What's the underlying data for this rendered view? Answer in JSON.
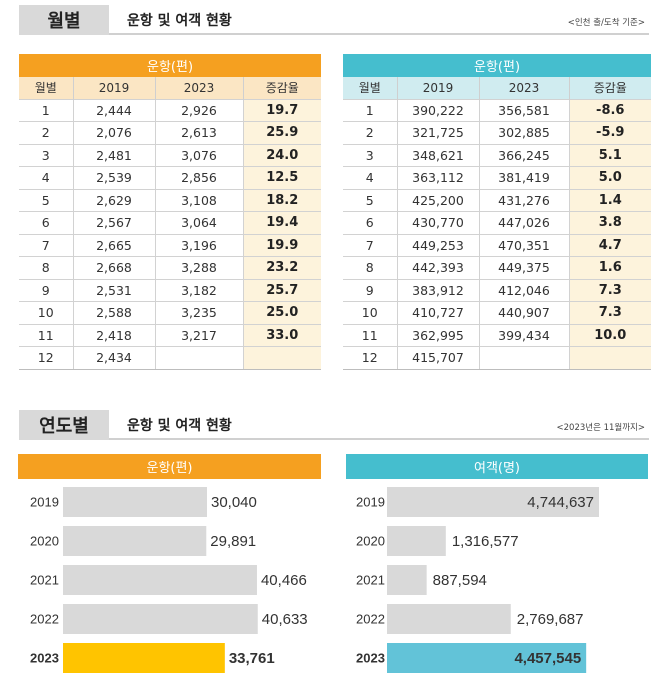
{
  "section_monthly": {
    "tab": "월별",
    "title": "운항 및 여객 현황",
    "note": "<인천 출/도착 기준>"
  },
  "flights_table": {
    "title": "운항(편)",
    "headers": [
      "월별",
      "2019",
      "2023",
      "증감율"
    ],
    "rows": [
      [
        "1",
        "2,444",
        "2,926",
        "19.7"
      ],
      [
        "2",
        "2,076",
        "2,613",
        "25.9"
      ],
      [
        "3",
        "2,481",
        "3,076",
        "24.0"
      ],
      [
        "4",
        "2,539",
        "2,856",
        "12.5"
      ],
      [
        "5",
        "2,629",
        "3,108",
        "18.2"
      ],
      [
        "6",
        "2,567",
        "3,064",
        "19.4"
      ],
      [
        "7",
        "2,665",
        "3,196",
        "19.9"
      ],
      [
        "8",
        "2,668",
        "3,288",
        "23.2"
      ],
      [
        "9",
        "2,531",
        "3,182",
        "25.7"
      ],
      [
        "10",
        "2,588",
        "3,235",
        "25.0"
      ],
      [
        "11",
        "2,418",
        "3,217",
        "33.0"
      ],
      [
        "12",
        "2,434",
        "",
        ""
      ]
    ]
  },
  "passengers_table": {
    "title": "운항(편)",
    "headers": [
      "월별",
      "2019",
      "2023",
      "증감율"
    ],
    "rows": [
      [
        "1",
        "390,222",
        "356,581",
        "-8.6"
      ],
      [
        "2",
        "321,725",
        "302,885",
        "-5.9"
      ],
      [
        "3",
        "348,621",
        "366,245",
        "5.1"
      ],
      [
        "4",
        "363,112",
        "381,419",
        "5.0"
      ],
      [
        "5",
        "425,200",
        "431,276",
        "1.4"
      ],
      [
        "6",
        "430,770",
        "447,026",
        "3.8"
      ],
      [
        "7",
        "449,253",
        "470,351",
        "4.7"
      ],
      [
        "8",
        "442,393",
        "449,375",
        "1.6"
      ],
      [
        "9",
        "383,912",
        "412,046",
        "7.3"
      ],
      [
        "10",
        "410,727",
        "440,907",
        "7.3"
      ],
      [
        "11",
        "362,995",
        "399,434",
        "10.0"
      ],
      [
        "12",
        "415,707",
        "",
        ""
      ]
    ]
  },
  "section_yearly": {
    "tab": "연도별",
    "title": "운항 및 여객 현황",
    "note": "<2023년은 11월까지>"
  },
  "colors": {
    "orange": "#f5a020",
    "teal": "#45bece",
    "bar_gray": "#d9d9d9",
    "bar_yellow": "#ffc400",
    "bar_teal": "#62c3d8"
  },
  "chart_data": [
    {
      "type": "bar",
      "orientation": "horizontal",
      "title": "운항(편)",
      "categories": [
        "2019",
        "2020",
        "2021",
        "2022",
        "2023"
      ],
      "values": [
        30040,
        29891,
        40466,
        40633,
        33761
      ],
      "value_labels": [
        "30,040",
        "29,891",
        "40,466",
        "40,633",
        "33,761"
      ],
      "highlight": "2023",
      "grid": false
    },
    {
      "type": "bar",
      "orientation": "horizontal",
      "title": "여객(명)",
      "categories": [
        "2019",
        "2020",
        "2021",
        "2022",
        "2023"
      ],
      "values": [
        4744637,
        1316577,
        887594,
        2769687,
        4457545
      ],
      "value_labels": [
        "4,744,637",
        "1,316,577",
        "887,594",
        "2,769,687",
        "4,457,545"
      ],
      "highlight": "2023",
      "grid": false
    }
  ]
}
